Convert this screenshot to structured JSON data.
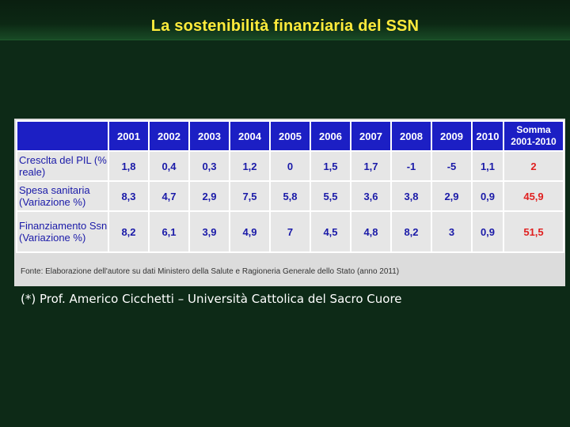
{
  "slide": {
    "title": "La sostenibilità finanziaria del SSN",
    "footnote": "(*) Prof. Americo Cicchetti – Università Cattolica del Sacro Cuore"
  },
  "table": {
    "headers": [
      "",
      "2001",
      "2002",
      "2003",
      "2004",
      "2005",
      "2006",
      "2007",
      "2008",
      "2009",
      "2010",
      "Somma 2001-2010"
    ],
    "somma_line1": "Somma",
    "somma_line2": "2001-2010",
    "rows": [
      {
        "label": "Cresclta del PIL (% reale)",
        "values": [
          "1,8",
          "0,4",
          "0,3",
          "1,2",
          "0",
          "1,5",
          "1,7",
          "-1",
          "-5",
          "1,1"
        ],
        "total": "2"
      },
      {
        "label": "Spesa sanitaria (Variazione %)",
        "values": [
          "8,3",
          "4,7",
          "2,9",
          "7,5",
          "5,8",
          "5,5",
          "3,6",
          "3,8",
          "2,9",
          "0,9"
        ],
        "total": "45,9"
      },
      {
        "label": "Finanziamento Ssn (Variazione %)",
        "values": [
          "8,2",
          "6,1",
          "3,9",
          "4,9",
          "7",
          "4,5",
          "4,8",
          "8,2",
          "3",
          "0,9"
        ],
        "total": "51,5"
      }
    ],
    "source": "Fonte: Elaborazione dell'autore su dati Ministero della Salute e Ragioneria Generale dello Stato (anno 2011)"
  },
  "colors": {
    "background": "#0d2a17",
    "title": "#ffeb3b",
    "header_bg": "#1c1fc4",
    "value_text": "#1a1aa8",
    "total_text": "#e02020"
  }
}
